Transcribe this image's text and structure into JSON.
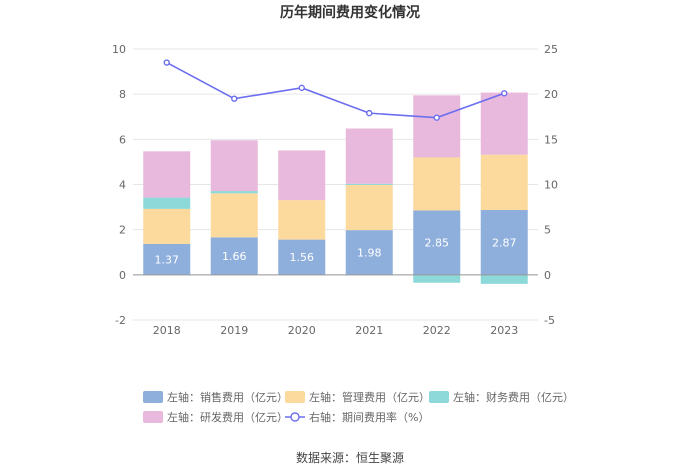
{
  "chart_data": {
    "type": "bar",
    "title": "历年期间费用变化情况",
    "categories": [
      "2018",
      "2019",
      "2020",
      "2021",
      "2022",
      "2023"
    ],
    "series": [
      {
        "name": "左轴：销售费用（亿元）",
        "axis": "left",
        "type": "bar",
        "color": "#8eaedc",
        "values": [
          1.37,
          1.66,
          1.56,
          1.98,
          2.85,
          2.87
        ],
        "labels": [
          "1.37",
          "1.66",
          "1.56",
          "1.98",
          "2.85",
          "2.87"
        ]
      },
      {
        "name": "左轴：管理费用（亿元）",
        "axis": "left",
        "type": "bar",
        "color": "#fcd99c",
        "values": [
          1.55,
          1.95,
          1.75,
          2.0,
          2.35,
          2.45
        ]
      },
      {
        "name": "左轴：财务费用（亿元）",
        "axis": "left",
        "type": "bar",
        "color": "#8dd8d8",
        "values": [
          0.5,
          0.1,
          0.0,
          0.05,
          -0.35,
          -0.4
        ]
      },
      {
        "name": "左轴：研发费用（亿元）",
        "axis": "left",
        "type": "bar",
        "color": "#e8b9dc",
        "values": [
          2.05,
          2.25,
          2.2,
          2.45,
          2.75,
          2.75
        ]
      },
      {
        "name": "右轴：期间费用率（%）",
        "axis": "right",
        "type": "line",
        "color": "#6c6ef0",
        "values": [
          23.5,
          19.5,
          20.7,
          17.9,
          17.4,
          20.1
        ]
      }
    ],
    "left_axis": {
      "min": -2,
      "max": 10,
      "ticks": [
        "-2",
        "0",
        "2",
        "4",
        "6",
        "8",
        "10"
      ]
    },
    "right_axis": {
      "min": -5,
      "max": 25,
      "ticks": [
        "-5",
        "0",
        "5",
        "10",
        "15",
        "20",
        "25"
      ]
    },
    "legend_position": "bottom",
    "source": "数据来源：恒生聚源"
  }
}
